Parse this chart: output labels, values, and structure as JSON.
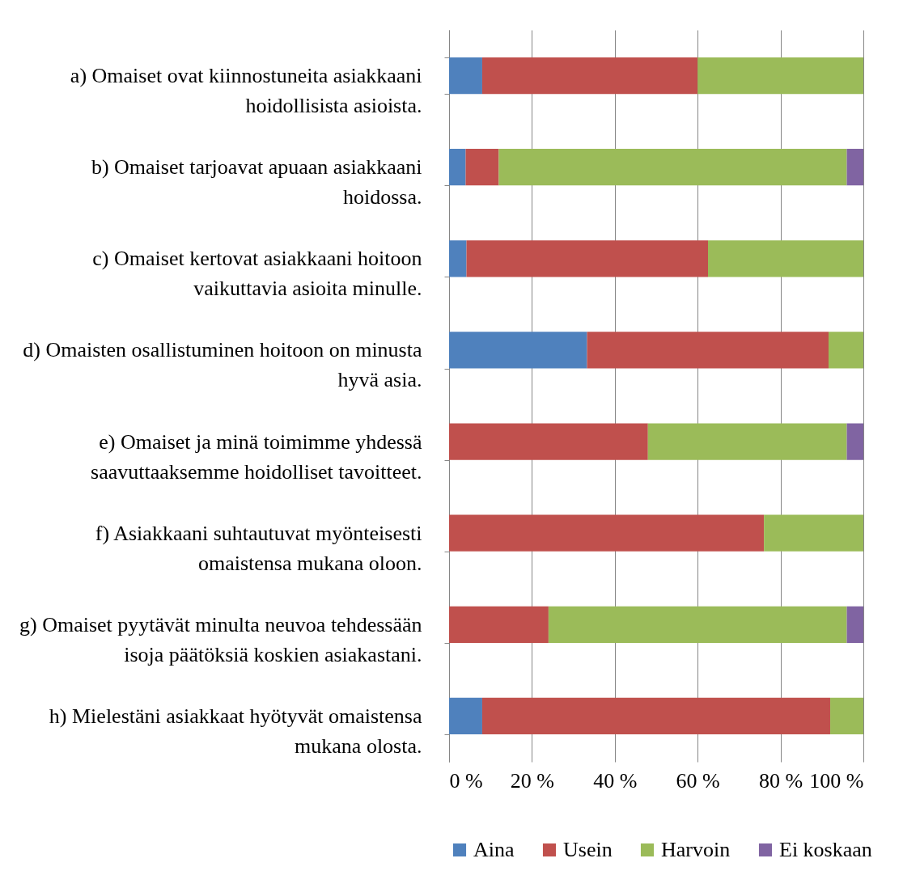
{
  "chart_data": {
    "type": "bar",
    "orientation": "horizontal",
    "stacked": true,
    "categories": [
      "a) Omaiset ovat kiinnostuneita asiakkaani hoidollisista asioista.",
      "b) Omaiset tarjoavat apuaan asiakkaani hoidossa.",
      "c) Omaiset kertovat asiakkaani hoitoon vaikuttavia asioita minulle.",
      "d) Omaisten osallistuminen hoitoon on minusta hyvä asia.",
      "e) Omaiset ja minä toimimme yhdessä saavuttaaksemme hoidolliset tavoitteet.",
      "f) Asiakkaani suhtautuvat myönteisesti omaistensa mukana oloon.",
      "g) Omaiset pyytävät minulta neuvoa tehdessään isoja päätöksiä koskien asiakastani.",
      "h) Mielestäni asiakkaat hyötyvät omaistensa mukana olosta."
    ],
    "series": [
      {
        "name": "Aina",
        "color": "#4f81bd",
        "values": [
          8,
          4,
          4.2,
          33.3,
          0,
          0,
          0,
          8
        ]
      },
      {
        "name": "Usein",
        "color": "#c0504d",
        "values": [
          52,
          8,
          58.3,
          58.3,
          48,
          76,
          24,
          84
        ]
      },
      {
        "name": "Harvoin",
        "color": "#9bbb59",
        "values": [
          40,
          84,
          37.5,
          8.4,
          48,
          24,
          72,
          8
        ]
      },
      {
        "name": "Ei koskaan",
        "color": "#8064a2",
        "values": [
          0,
          4,
          0,
          0,
          4,
          0,
          4,
          0
        ]
      }
    ],
    "xlim": [
      0,
      100
    ],
    "xticks": [
      {
        "value": 0,
        "label": "0 %"
      },
      {
        "value": 20,
        "label": "20 %"
      },
      {
        "value": 40,
        "label": "40 %"
      },
      {
        "value": 60,
        "label": "60 %"
      },
      {
        "value": 80,
        "label": "80 %"
      },
      {
        "value": 100,
        "label": "100 %"
      }
    ],
    "grid": "x",
    "legend": "bottom"
  }
}
